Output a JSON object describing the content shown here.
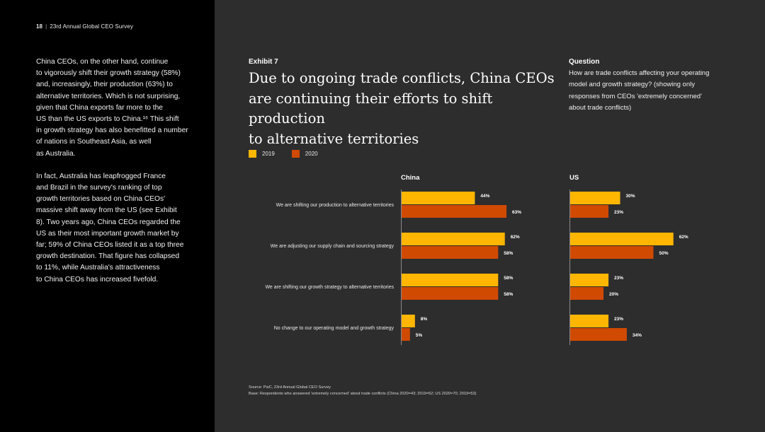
{
  "header": {
    "page_number": "18",
    "separator": "|",
    "report_title": "23rd Annual Global CEO Survey"
  },
  "body_paragraphs": [
    "China CEOs, on the other hand, continue\nto vigorously shift their growth strategy (58%)\nand, increasingly, their production (63%) to\nalternative territories. Which is not surprising,\ngiven that China exports far more to the\nUS than the US exports to China.¹⁶ This shift\nin growth strategy has also benefitted a number\nof nations in Southeast Asia, as well\nas Australia.",
    "In fact, Australia has leapfrogged France\nand Brazil in the survey's ranking of top\ngrowth territories based on China CEOs'\nmassive shift away from the US (see Exhibit\n8). Two years ago, China CEOs regarded the\nUS as their most important growth market by\nfar; 59% of China CEOs listed it as a top three\ngrowth destination. That figure has collapsed\nto 11%, while Australia's attractiveness\nto China CEOs has increased fivefold."
  ],
  "exhibit": {
    "label": "Exhibit 7",
    "title": "Due to ongoing trade conflicts, China CEOs\nare continuing their efforts to shift production\nto alternative territories"
  },
  "question": {
    "label": "Question",
    "text": "How are trade conflicts affecting your operating\nmodel and growth strategy? (showing only\nresponses from CEOs 'extremely concerned'\nabout trade conflicts)"
  },
  "legend": [
    {
      "label": "2019",
      "color": "#ffb600"
    },
    {
      "label": "2020",
      "color": "#d04a02"
    }
  ],
  "chart_data": {
    "type": "bar",
    "orientation": "horizontal",
    "categories": [
      "We are shifting our production to alternative territories",
      "We are adjusting our supply chain and sourcing strategy",
      "We are shifting our growth strategy to alternative territories",
      "No change to our operating model and growth strategy"
    ],
    "panels": [
      {
        "title": "China",
        "series": [
          {
            "name": "2019",
            "values": [
              44,
              62,
              58,
              8
            ]
          },
          {
            "name": "2020",
            "values": [
              63,
              58,
              58,
              5
            ]
          }
        ]
      },
      {
        "title": "US",
        "series": [
          {
            "name": "2019",
            "values": [
              30,
              62,
              23,
              23
            ]
          },
          {
            "name": "2020",
            "values": [
              23,
              50,
              20,
              34
            ]
          }
        ]
      }
    ],
    "value_suffix": "%",
    "xlim": [
      0,
      100
    ],
    "grid": false,
    "legend_position": "top-left"
  },
  "source": {
    "line1": "Source: PwC, 23rd Annual Global CEO Survey",
    "line2": "Base: Respondents who answered 'extremely concerned' about trade conflicts (China 2020=43; 2019=52; US 2020=70; 2019=53)"
  },
  "colors": {
    "left_bg": "#000000",
    "right_bg": "#2d2d2d",
    "bar_2019": "#ffb600",
    "bar_2020": "#d04a02"
  }
}
